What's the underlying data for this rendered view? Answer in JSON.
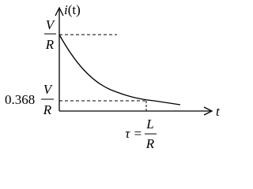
{
  "y_axis_label": {
    "symbol": "i",
    "argument": "(t)"
  },
  "x_axis_label": "t",
  "top_level": {
    "numerator": "V",
    "denominator": "R"
  },
  "lower_level": {
    "coefficient": "0.368",
    "numerator": "V",
    "denominator": "R"
  },
  "time_constant": {
    "prefix": "τ =",
    "numerator": "L",
    "denominator": "R"
  }
}
